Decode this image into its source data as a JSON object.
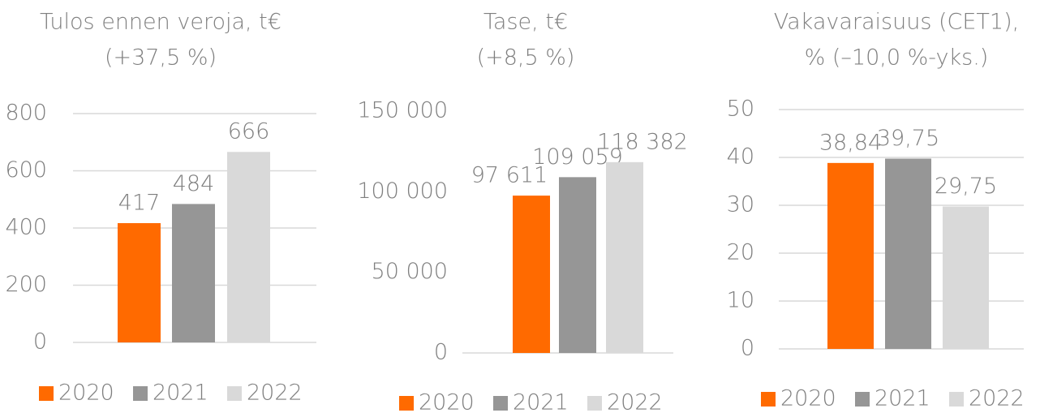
{
  "chart_data": [
    {
      "type": "bar",
      "title": "Tulos ennen veroja, t€",
      "subtitle": "(+37,5 %)",
      "series": [
        {
          "name": "2020",
          "color": "#ff6a00",
          "values": [
            417
          ]
        },
        {
          "name": "2021",
          "color": "#969696",
          "values": [
            484
          ]
        },
        {
          "name": "2022",
          "color": "#d9d9d9",
          "values": [
            666
          ]
        }
      ],
      "ylim": [
        0,
        800
      ],
      "yticks": [
        0,
        200,
        400,
        600,
        800
      ],
      "grid": true,
      "legend": "bottom"
    },
    {
      "type": "bar",
      "title": "Tase, t€",
      "subtitle": "(+8,5 %)",
      "series": [
        {
          "name": "2020",
          "color": "#ff6a00",
          "values": [
            97611
          ],
          "value_labels": [
            "97 611"
          ]
        },
        {
          "name": "2021",
          "color": "#969696",
          "values": [
            109059
          ],
          "value_labels": [
            "109 059"
          ]
        },
        {
          "name": "2022",
          "color": "#d9d9d9",
          "values": [
            118382
          ],
          "value_labels": [
            "118 382"
          ]
        }
      ],
      "ylim": [
        0,
        150000
      ],
      "yticks": [
        0,
        {
          "value": 50000,
          "label": "50 000"
        },
        {
          "value": 100000,
          "label": "100 000"
        },
        {
          "value": 150000,
          "label": "150 000"
        }
      ],
      "grid": false,
      "legend": "bottom"
    },
    {
      "type": "bar",
      "title": "Vakavaraisuus (CET1),",
      "subtitle": "% (–10,0 %-yks.)",
      "series": [
        {
          "name": "2020",
          "color": "#ff6a00",
          "values": [
            38.84
          ],
          "value_labels": [
            "38,84"
          ]
        },
        {
          "name": "2021",
          "color": "#969696",
          "values": [
            39.75
          ],
          "value_labels": [
            "39,75"
          ]
        },
        {
          "name": "2022",
          "color": "#d9d9d9",
          "values": [
            29.75
          ],
          "value_labels": [
            "29,75"
          ]
        }
      ],
      "ylim": [
        0,
        50
      ],
      "yticks": [
        0,
        10,
        20,
        30,
        40,
        50
      ],
      "grid": true,
      "legend": "bottom"
    }
  ]
}
